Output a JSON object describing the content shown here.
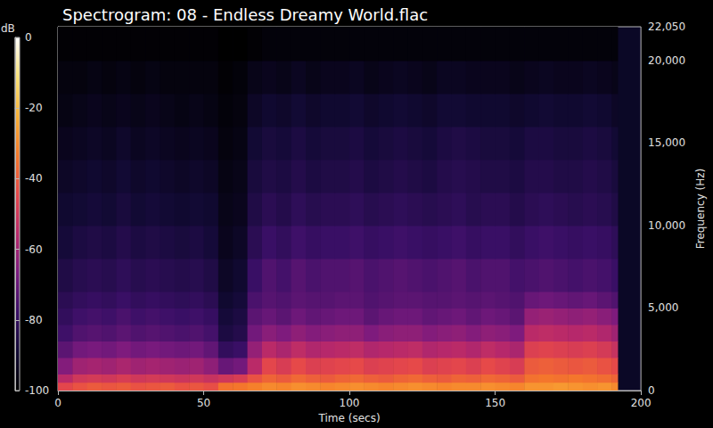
{
  "chart_data": {
    "type": "heatmap",
    "title": "Spectrogram: 08 - Endless Dreamy World.flac",
    "x_label": "Time (secs)",
    "y_label": "Frequency (Hz)",
    "xlim": [
      0,
      200
    ],
    "xticks": [
      0,
      50,
      100,
      150,
      200
    ],
    "ylim": [
      0,
      22050
    ],
    "yticks": [
      0,
      5000,
      10000,
      15000,
      20000
    ],
    "grid": false,
    "x_edges": [
      0,
      5,
      10,
      15,
      20,
      25,
      30,
      35,
      40,
      45,
      50,
      55,
      60,
      65,
      70,
      75,
      80,
      85,
      90,
      95,
      100,
      105,
      110,
      115,
      120,
      125,
      130,
      135,
      140,
      145,
      150,
      155,
      160,
      165,
      170,
      175,
      180,
      185,
      190,
      192
    ],
    "y_edges": [
      0,
      500,
      1000,
      2000,
      3000,
      4000,
      5000,
      6000,
      8000,
      10000,
      12000,
      14000,
      16000,
      18000,
      20000,
      22050
    ],
    "cells": [
      [
        -45,
        -42,
        -40,
        -41,
        -40,
        -42,
        -41,
        -40,
        -42,
        -41,
        -43,
        -35,
        -34,
        -32,
        -30,
        -31,
        -29,
        -30,
        -31,
        -30,
        -29,
        -30,
        -31,
        -30,
        -29,
        -30,
        -31,
        -30,
        -30,
        -29,
        -30,
        -31,
        -28,
        -28,
        -27,
        -28,
        -29,
        -28,
        -30
      ],
      [
        -55,
        -50,
        -49,
        -50,
        -48,
        -50,
        -49,
        -50,
        -51,
        -50,
        -52,
        -50,
        -48,
        -42,
        -38,
        -40,
        -37,
        -39,
        -40,
        -38,
        -37,
        -39,
        -40,
        -38,
        -37,
        -39,
        -40,
        -38,
        -39,
        -37,
        -38,
        -40,
        -35,
        -34,
        -35,
        -34,
        -35,
        -36,
        -38
      ],
      [
        -65,
        -60,
        -59,
        -60,
        -58,
        -60,
        -59,
        -60,
        -61,
        -60,
        -63,
        -70,
        -68,
        -55,
        -45,
        -48,
        -44,
        -47,
        -46,
        -45,
        -44,
        -47,
        -46,
        -45,
        -44,
        -47,
        -46,
        -45,
        -47,
        -44,
        -46,
        -48,
        -40,
        -39,
        -40,
        -41,
        -40,
        -42,
        -44
      ],
      [
        -72,
        -68,
        -67,
        -68,
        -66,
        -68,
        -67,
        -68,
        -69,
        -68,
        -71,
        -80,
        -78,
        -62,
        -55,
        -58,
        -54,
        -57,
        -56,
        -55,
        -54,
        -57,
        -56,
        -55,
        -54,
        -57,
        -56,
        -55,
        -57,
        -54,
        -56,
        -58,
        -47,
        -46,
        -47,
        -48,
        -47,
        -49,
        -52
      ],
      [
        -77,
        -74,
        -73,
        -74,
        -72,
        -74,
        -73,
        -74,
        -75,
        -74,
        -76,
        -86,
        -84,
        -68,
        -64,
        -66,
        -63,
        -65,
        -64,
        -63,
        -63,
        -66,
        -64,
        -63,
        -63,
        -65,
        -64,
        -63,
        -65,
        -63,
        -64,
        -66,
        -55,
        -54,
        -55,
        -56,
        -55,
        -57,
        -60
      ],
      [
        -80,
        -77,
        -76,
        -77,
        -75,
        -77,
        -76,
        -77,
        -78,
        -77,
        -79,
        -88,
        -86,
        -72,
        -70,
        -72,
        -69,
        -71,
        -70,
        -69,
        -69,
        -72,
        -70,
        -69,
        -69,
        -71,
        -70,
        -69,
        -71,
        -69,
        -70,
        -72,
        -62,
        -61,
        -62,
        -63,
        -62,
        -64,
        -66
      ],
      [
        -82,
        -80,
        -79,
        -80,
        -78,
        -80,
        -79,
        -80,
        -81,
        -80,
        -82,
        -90,
        -88,
        -75,
        -73,
        -74,
        -72,
        -73,
        -73,
        -72,
        -72,
        -74,
        -73,
        -72,
        -72,
        -73,
        -73,
        -72,
        -73,
        -72,
        -73,
        -74,
        -70,
        -69,
        -70,
        -71,
        -70,
        -72,
        -74
      ],
      [
        -85,
        -83,
        -82,
        -83,
        -81,
        -83,
        -82,
        -83,
        -84,
        -83,
        -85,
        -92,
        -90,
        -78,
        -74,
        -76,
        -73,
        -75,
        -74,
        -74,
        -73,
        -75,
        -74,
        -73,
        -74,
        -75,
        -74,
        -73,
        -75,
        -74,
        -74,
        -76,
        -75,
        -74,
        -75,
        -76,
        -75,
        -76,
        -78
      ],
      [
        -88,
        -86,
        -85,
        -86,
        -84,
        -86,
        -85,
        -86,
        -87,
        -86,
        -88,
        -94,
        -92,
        -82,
        -78,
        -80,
        -77,
        -79,
        -78,
        -78,
        -77,
        -79,
        -78,
        -77,
        -78,
        -79,
        -78,
        -77,
        -79,
        -78,
        -78,
        -80,
        -78,
        -77,
        -78,
        -79,
        -78,
        -79,
        -81
      ],
      [
        -90,
        -89,
        -88,
        -89,
        -87,
        -89,
        -88,
        -89,
        -90,
        -89,
        -90,
        -95,
        -94,
        -85,
        -82,
        -84,
        -81,
        -83,
        -82,
        -82,
        -81,
        -83,
        -82,
        -81,
        -82,
        -83,
        -82,
        -81,
        -83,
        -82,
        -82,
        -84,
        -82,
        -81,
        -82,
        -83,
        -82,
        -83,
        -85
      ],
      [
        -92,
        -91,
        -90,
        -91,
        -89,
        -91,
        -90,
        -91,
        -92,
        -91,
        -92,
        -96,
        -95,
        -87,
        -85,
        -86,
        -84,
        -86,
        -85,
        -85,
        -84,
        -86,
        -85,
        -84,
        -85,
        -86,
        -84,
        -83,
        -84,
        -85,
        -85,
        -86,
        -84,
        -84,
        -85,
        -85,
        -84,
        -85,
        -87
      ],
      [
        -94,
        -93,
        -92,
        -93,
        -91,
        -93,
        -92,
        -93,
        -94,
        -93,
        -94,
        -97,
        -96,
        -89,
        -87,
        -88,
        -86,
        -88,
        -87,
        -87,
        -86,
        -88,
        -87,
        -86,
        -87,
        -88,
        -86,
        -85,
        -86,
        -87,
        -87,
        -88,
        -86,
        -86,
        -87,
        -87,
        -86,
        -87,
        -89
      ],
      [
        -96,
        -95,
        -94,
        -95,
        -94,
        -95,
        -94,
        -95,
        -96,
        -95,
        -96,
        -98,
        -97,
        -92,
        -90,
        -91,
        -89,
        -91,
        -90,
        -90,
        -89,
        -91,
        -90,
        -89,
        -90,
        -91,
        -89,
        -89,
        -90,
        -90,
        -90,
        -91,
        -90,
        -89,
        -90,
        -90,
        -89,
        -90,
        -92
      ],
      [
        -97,
        -97,
        -96,
        -97,
        -96,
        -97,
        -96,
        -97,
        -97,
        -97,
        -97,
        -99,
        -98,
        -95,
        -94,
        -95,
        -93,
        -95,
        -94,
        -94,
        -93,
        -95,
        -94,
        -93,
        -94,
        -95,
        -93,
        -93,
        -94,
        -94,
        -94,
        -95,
        -94,
        -93,
        -94,
        -94,
        -93,
        -94,
        -95
      ],
      [
        -99,
        -99,
        -99,
        -99,
        -99,
        -99,
        -99,
        -99,
        -99,
        -99,
        -99,
        -100,
        -100,
        -99,
        -98,
        -98,
        -98,
        -98,
        -98,
        -98,
        -98,
        -98,
        -98,
        -98,
        -98,
        -98,
        -98,
        -98,
        -98,
        -98,
        -98,
        -98,
        -98,
        -98,
        -98,
        -98,
        -98,
        -98,
        -98
      ]
    ],
    "colorbar": {
      "label": "dB",
      "range": [
        -100,
        0
      ],
      "ticks": [
        -100,
        -80,
        -60,
        -40,
        -20,
        0
      ]
    }
  }
}
